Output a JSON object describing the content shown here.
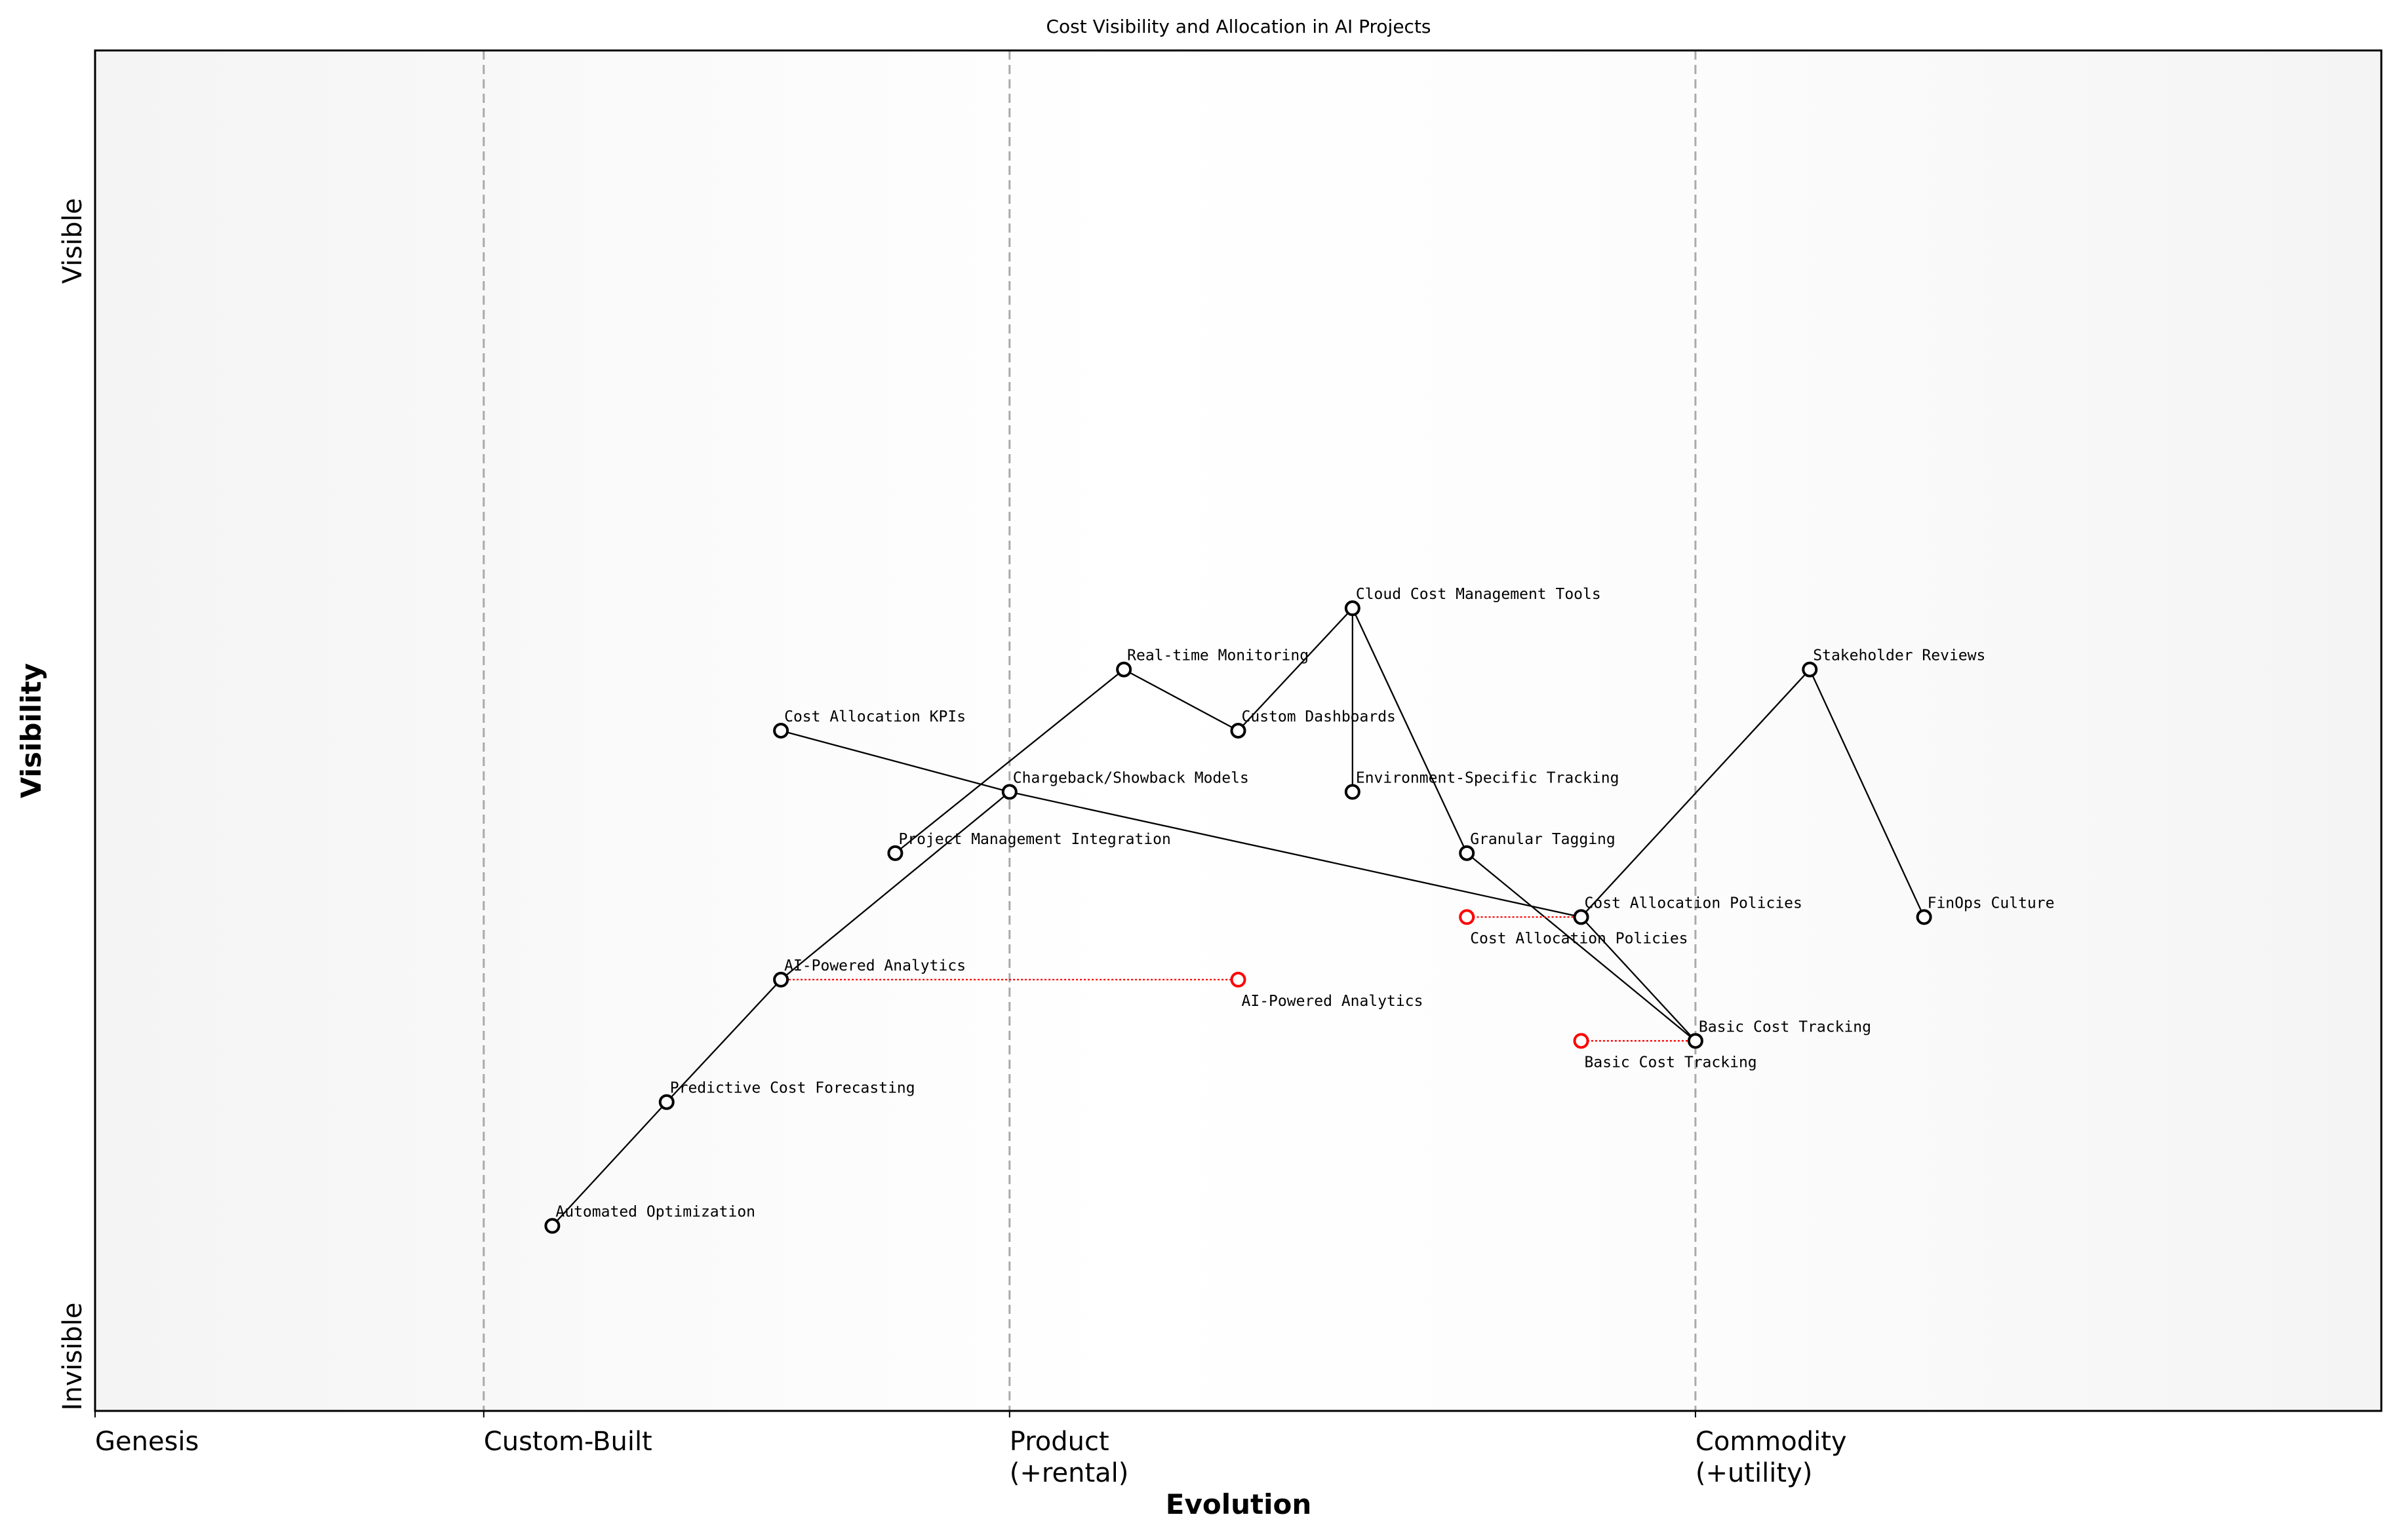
{
  "title": "Cost Visibility and Allocation in AI Projects",
  "x_axis": {
    "label": "Evolution",
    "ticks": [
      {
        "value": 0.0,
        "lines": [
          "Genesis"
        ]
      },
      {
        "value": 0.17,
        "lines": [
          "Custom-Built"
        ]
      },
      {
        "value": 0.4,
        "lines": [
          "Product",
          "(+rental)"
        ]
      },
      {
        "value": 0.7,
        "lines": [
          "Commodity",
          "(+utility)"
        ]
      }
    ],
    "range": [
      0,
      1
    ],
    "stage_dividers": [
      0.17,
      0.4,
      0.7
    ]
  },
  "y_axis": {
    "label": "Visibility",
    "ticks": [
      {
        "value": 0.86,
        "label": "Visible"
      },
      {
        "value": 0.04,
        "label": "Invisible"
      }
    ],
    "range": [
      0,
      1
    ]
  },
  "colors": {
    "node": "#000000",
    "movement": "#ff0000",
    "divider": "#aaaaaa",
    "edge_bg": "#f4f4f4"
  },
  "components": [
    {
      "id": "cloud",
      "name": "Cloud Cost Management Tools",
      "evolution": 0.55,
      "visibility": 0.59
    },
    {
      "id": "realtime",
      "name": "Real-time Monitoring",
      "evolution": 0.45,
      "visibility": 0.545
    },
    {
      "id": "stakeholder",
      "name": "Stakeholder Reviews",
      "evolution": 0.75,
      "visibility": 0.545
    },
    {
      "id": "kpis",
      "name": "Cost Allocation KPIs",
      "evolution": 0.3,
      "visibility": 0.5
    },
    {
      "id": "dashboards",
      "name": "Custom Dashboards",
      "evolution": 0.5,
      "visibility": 0.5
    },
    {
      "id": "chargeback",
      "name": "Chargeback/Showback Models",
      "evolution": 0.4,
      "visibility": 0.455
    },
    {
      "id": "env",
      "name": "Environment-Specific Tracking",
      "evolution": 0.55,
      "visibility": 0.455
    },
    {
      "id": "pmi",
      "name": "Project Management Integration",
      "evolution": 0.35,
      "visibility": 0.41
    },
    {
      "id": "tagging",
      "name": "Granular Tagging",
      "evolution": 0.6,
      "visibility": 0.41
    },
    {
      "id": "policies",
      "name": "Cost Allocation Policies",
      "evolution": 0.65,
      "visibility": 0.363
    },
    {
      "id": "finops",
      "name": "FinOps Culture",
      "evolution": 0.8,
      "visibility": 0.363
    },
    {
      "id": "ai",
      "name": "AI-Powered Analytics",
      "evolution": 0.3,
      "visibility": 0.317
    },
    {
      "id": "basic",
      "name": "Basic Cost Tracking",
      "evolution": 0.7,
      "visibility": 0.272
    },
    {
      "id": "forecast",
      "name": "Predictive Cost Forecasting",
      "evolution": 0.25,
      "visibility": 0.227
    },
    {
      "id": "auto",
      "name": "Automated Optimization",
      "evolution": 0.2,
      "visibility": 0.136
    }
  ],
  "links": [
    [
      "auto",
      "forecast"
    ],
    [
      "forecast",
      "ai"
    ],
    [
      "ai",
      "chargeback"
    ],
    [
      "kpis",
      "chargeback"
    ],
    [
      "chargeback",
      "policies"
    ],
    [
      "pmi",
      "realtime"
    ],
    [
      "realtime",
      "dashboards"
    ],
    [
      "dashboards",
      "cloud"
    ],
    [
      "cloud",
      "env"
    ],
    [
      "cloud",
      "tagging"
    ],
    [
      "tagging",
      "basic"
    ],
    [
      "policies",
      "basic"
    ],
    [
      "policies",
      "stakeholder"
    ],
    [
      "stakeholder",
      "finops"
    ]
  ],
  "movements": [
    {
      "name": "AI-Powered Analytics",
      "from": "ai",
      "evolution": 0.5
    },
    {
      "name": "Cost Allocation Policies",
      "from": "policies",
      "evolution": 0.6
    },
    {
      "name": "Basic Cost Tracking",
      "from": "basic",
      "evolution": 0.65
    }
  ]
}
